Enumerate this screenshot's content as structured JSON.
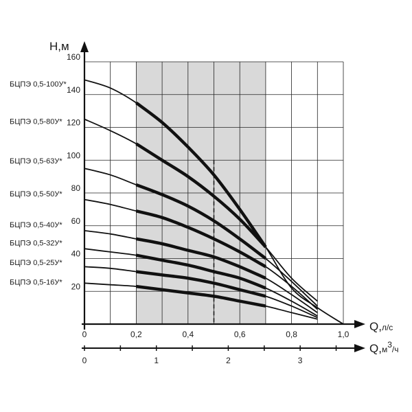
{
  "chart_data": {
    "type": "line",
    "title": "",
    "ylabel": "H,м",
    "xlabel": "Q,",
    "xlabel_unit": "л/с",
    "x2label": "Q,",
    "x2label_unit_base": "м",
    "x2label_unit_sup": "3",
    "x2label_unit_tail": "/ч",
    "x2_ticks": [
      "0",
      "1",
      "2",
      "3"
    ],
    "x2_tick_values": [
      0,
      0.2778,
      0.5556,
      0.8333
    ],
    "x_ticks": [
      "0",
      "0,2",
      "0,4",
      "0,6",
      "0,8",
      "1,0"
    ],
    "x_tick_values": [
      0,
      0.2,
      0.4,
      0.6,
      0.8,
      1.0
    ],
    "y_ticks": [
      "20",
      "40",
      "60",
      "80",
      "100",
      "120",
      "140",
      "160"
    ],
    "y_tick_values": [
      20,
      40,
      60,
      80,
      100,
      120,
      140,
      160
    ],
    "xlim": [
      0,
      1.0
    ],
    "ylim": [
      0,
      160
    ],
    "grid": true,
    "working_range": [
      0.2,
      0.7
    ],
    "working_marker_q": 0.5,
    "series": [
      {
        "name": "БЦПЭ 0,5-100У*",
        "label_y": 145,
        "points": [
          [
            0,
            149
          ],
          [
            0.1,
            144
          ],
          [
            0.2,
            135
          ],
          [
            0.3,
            123
          ],
          [
            0.4,
            108
          ],
          [
            0.5,
            91
          ],
          [
            0.6,
            70
          ],
          [
            0.7,
            47
          ],
          [
            0.8,
            22
          ],
          [
            0.9,
            10
          ],
          [
            1.0,
            0
          ]
        ]
      },
      {
        "name": "БЦПЭ 0,5-80У*",
        "label_y": 122,
        "points": [
          [
            0,
            125
          ],
          [
            0.1,
            118
          ],
          [
            0.2,
            110
          ],
          [
            0.3,
            100
          ],
          [
            0.4,
            90
          ],
          [
            0.5,
            78
          ],
          [
            0.6,
            64
          ],
          [
            0.7,
            47
          ],
          [
            0.8,
            28
          ],
          [
            0.9,
            14
          ]
        ]
      },
      {
        "name": "БЦПЭ 0,5-63У*",
        "label_y": 98,
        "points": [
          [
            0,
            95
          ],
          [
            0.1,
            91
          ],
          [
            0.2,
            85
          ],
          [
            0.3,
            79
          ],
          [
            0.4,
            72
          ],
          [
            0.5,
            63
          ],
          [
            0.6,
            52
          ],
          [
            0.7,
            40
          ],
          [
            0.8,
            26
          ],
          [
            0.9,
            11
          ]
        ]
      },
      {
        "name": "БЦПЭ 0,5-50У*",
        "label_y": 78,
        "points": [
          [
            0,
            76
          ],
          [
            0.1,
            73
          ],
          [
            0.2,
            69
          ],
          [
            0.3,
            65
          ],
          [
            0.4,
            59
          ],
          [
            0.5,
            52
          ],
          [
            0.6,
            44
          ],
          [
            0.7,
            35
          ],
          [
            0.8,
            23
          ],
          [
            0.9,
            9
          ]
        ]
      },
      {
        "name": "БЦПЭ 0,5-40У*",
        "label_y": 59,
        "points": [
          [
            0,
            57
          ],
          [
            0.1,
            55
          ],
          [
            0.2,
            52
          ],
          [
            0.3,
            49
          ],
          [
            0.4,
            45
          ],
          [
            0.5,
            41
          ],
          [
            0.6,
            35
          ],
          [
            0.7,
            28
          ],
          [
            0.8,
            18
          ],
          [
            0.9,
            7
          ]
        ]
      },
      {
        "name": "БЦПЭ 0,5-32У*",
        "label_y": 48,
        "points": [
          [
            0,
            46
          ],
          [
            0.1,
            44
          ],
          [
            0.2,
            42
          ],
          [
            0.3,
            39
          ],
          [
            0.4,
            36
          ],
          [
            0.5,
            32
          ],
          [
            0.6,
            28
          ],
          [
            0.7,
            22
          ],
          [
            0.8,
            14
          ],
          [
            0.9,
            5
          ]
        ]
      },
      {
        "name": "БЦПЭ 0,5-25У*",
        "label_y": 36,
        "points": [
          [
            0,
            35
          ],
          [
            0.1,
            34
          ],
          [
            0.2,
            32
          ],
          [
            0.3,
            30
          ],
          [
            0.4,
            28
          ],
          [
            0.5,
            25
          ],
          [
            0.6,
            21
          ],
          [
            0.7,
            17
          ],
          [
            0.8,
            11
          ],
          [
            0.9,
            4
          ]
        ]
      },
      {
        "name": "БЦПЭ 0,5-16У*",
        "label_y": 24,
        "points": [
          [
            0,
            25
          ],
          [
            0.1,
            24
          ],
          [
            0.2,
            23
          ],
          [
            0.3,
            21
          ],
          [
            0.4,
            19
          ],
          [
            0.5,
            17
          ],
          [
            0.6,
            14
          ],
          [
            0.7,
            11
          ],
          [
            0.8,
            7
          ],
          [
            0.9,
            3
          ]
        ]
      }
    ]
  }
}
